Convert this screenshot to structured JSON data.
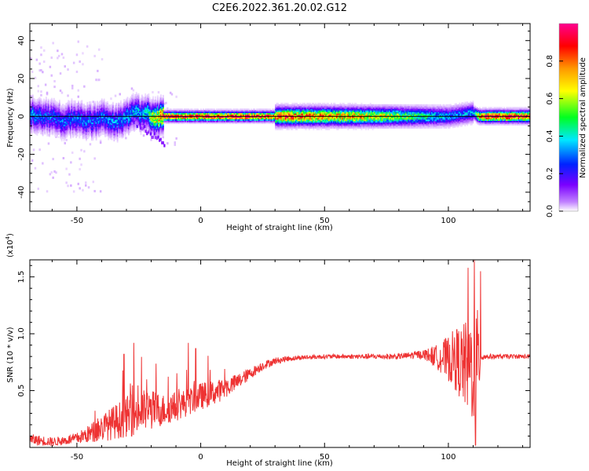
{
  "title": "C2E6.2022.361.20.02.G12",
  "chart_data": [
    {
      "type": "heatmap",
      "xlabel": "Height of straight line (km)",
      "ylabel": "Frequency (Hz)",
      "xlim": [
        -69,
        133
      ],
      "ylim": [
        -50,
        49
      ],
      "xticks": [
        -50,
        0,
        50,
        100
      ],
      "xtick_labels": [
        "-50",
        "0",
        "50",
        "100"
      ],
      "yticks": [
        40,
        20,
        0,
        -20,
        -40
      ],
      "ytick_labels": [
        "40",
        "20",
        "0",
        "-20",
        "-40"
      ],
      "reference_line_y": 0,
      "grid": false,
      "colorbar": {
        "label": "Normalized spectral amplitude",
        "range": [
          0,
          1
        ],
        "ticks": [
          0.0,
          0.2,
          0.4,
          0.6,
          0.8
        ],
        "tick_labels": [
          "0.0",
          "0.2",
          "0.4",
          "0.6",
          "0.8"
        ],
        "colors": [
          "#ffffff",
          "#c080ff",
          "#7b00ff",
          "#0022ff",
          "#00e8ff",
          "#00ff20",
          "#ffff00",
          "#ff9900",
          "#ff0000",
          "#ff0090"
        ]
      },
      "ridge": {
        "x": [
          -68,
          -64,
          -60,
          -56,
          -52,
          -48,
          -44,
          -40,
          -36,
          -32,
          -28,
          -26,
          -24,
          -22,
          -20,
          -18,
          -15,
          -10,
          0,
          20,
          40,
          60,
          80,
          100,
          105,
          110,
          112,
          115,
          125,
          133
        ],
        "frequency": [
          1,
          0,
          -1,
          -2,
          -1,
          -2,
          -3,
          -1,
          -3,
          -2,
          1,
          3,
          1,
          2,
          0,
          0,
          0,
          0,
          0,
          0,
          0,
          0,
          0,
          0,
          1,
          2,
          0,
          0,
          0,
          0
        ],
        "amplitude": [
          0.4,
          0.35,
          0.35,
          0.35,
          0.35,
          0.35,
          0.35,
          0.35,
          0.38,
          0.38,
          0.4,
          0.42,
          0.4,
          0.45,
          0.6,
          0.7,
          0.85,
          0.9,
          0.9,
          0.9,
          0.8,
          0.75,
          0.6,
          0.4,
          0.38,
          0.4,
          0.8,
          0.9,
          0.9,
          0.9
        ]
      }
    },
    {
      "type": "line",
      "xlabel": "Height of straight line (km)",
      "ylabel": "SNR (10 * v/v)",
      "y_multiplier_label": "(x10",
      "y_multiplier_exponent": "4",
      "y_multiplier_close": ")",
      "xlim": [
        -69,
        133
      ],
      "ylim": [
        0,
        1.65
      ],
      "xticks": [
        -50,
        0,
        50,
        100
      ],
      "xtick_labels": [
        "-50",
        "0",
        "50",
        "100"
      ],
      "yticks": [
        0.5,
        1.0,
        1.5
      ],
      "ytick_labels": [
        "0.5",
        "1.0",
        "1.5"
      ],
      "color": "#ee3333",
      "grid": false,
      "envelope": {
        "x": [
          -69,
          -60,
          -55,
          -50,
          -45,
          -40,
          -35,
          -30,
          -25,
          -20,
          -15,
          -10,
          -5,
          0,
          5,
          10,
          15,
          20,
          25,
          30,
          35,
          40,
          50,
          60,
          70,
          80,
          90,
          95,
          100,
          103,
          106,
          108,
          110,
          112,
          113,
          115,
          120,
          125,
          133
        ],
        "center": [
          0.07,
          0.05,
          0.06,
          0.08,
          0.12,
          0.17,
          0.22,
          0.27,
          0.31,
          0.33,
          0.33,
          0.36,
          0.4,
          0.45,
          0.48,
          0.52,
          0.58,
          0.65,
          0.72,
          0.76,
          0.78,
          0.79,
          0.8,
          0.8,
          0.8,
          0.8,
          0.82,
          0.8,
          0.78,
          0.78,
          0.72,
          0.72,
          0.7,
          0.72,
          0.8,
          0.8,
          0.8,
          0.8,
          0.8
        ],
        "noise": [
          0.05,
          0.04,
          0.04,
          0.05,
          0.08,
          0.12,
          0.15,
          0.18,
          0.2,
          0.18,
          0.14,
          0.13,
          0.12,
          0.12,
          0.11,
          0.09,
          0.07,
          0.05,
          0.04,
          0.03,
          0.025,
          0.02,
          0.02,
          0.02,
          0.025,
          0.025,
          0.04,
          0.1,
          0.2,
          0.28,
          0.36,
          0.45,
          0.5,
          0.5,
          0.05,
          0.025,
          0.02,
          0.02,
          0.02
        ],
        "peaks": [
          {
            "x": -27,
            "y": 0.92
          },
          {
            "x": -31,
            "y": 0.82
          },
          {
            "x": -5,
            "y": 0.92
          },
          {
            "x": -2,
            "y": 0.87
          },
          {
            "x": 108,
            "y": 1.58
          },
          {
            "x": 110.5,
            "y": 1.65
          },
          {
            "x": 113,
            "y": 1.55
          },
          {
            "x": 111,
            "y": 0.02
          }
        ]
      }
    }
  ]
}
